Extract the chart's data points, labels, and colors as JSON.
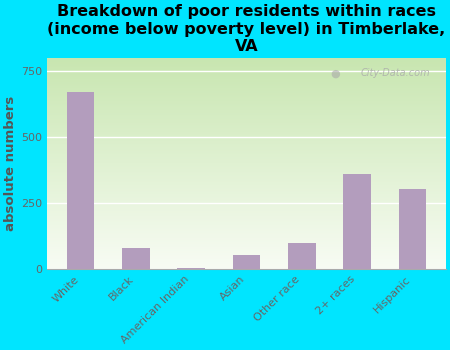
{
  "categories": [
    "White",
    "Black",
    "American Indian",
    "Asian",
    "Other race",
    "2+ races",
    "Hispanic"
  ],
  "values": [
    670,
    80,
    5,
    55,
    100,
    360,
    305
  ],
  "bar_color": "#b39dbd",
  "title": "Breakdown of poor residents within races\n(income below poverty level) in Timberlake,\nVA",
  "ylabel": "absolute numbers",
  "ylim": [
    0,
    800
  ],
  "yticks": [
    0,
    250,
    500,
    750
  ],
  "background_color": "#00e5ff",
  "plot_bg_top_left": "#c8e6b0",
  "plot_bg_bottom_right": "#f8f8f8",
  "watermark": "City-Data.com",
  "title_fontsize": 11.5,
  "ylabel_fontsize": 9.5,
  "tick_fontsize": 8,
  "ylabel_color": "#555555"
}
